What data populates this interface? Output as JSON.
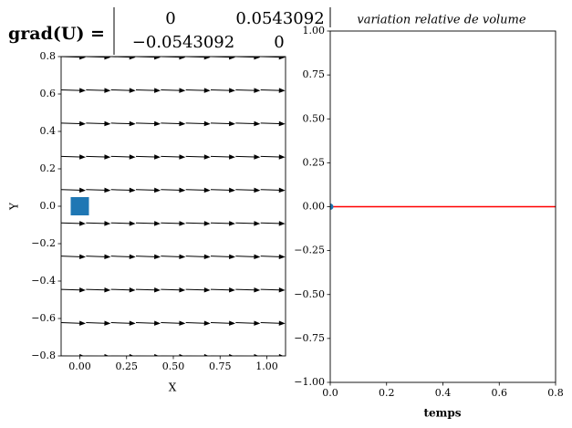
{
  "chart_data": [
    {
      "type": "quiver",
      "title": "grad(U) =",
      "matrix": [
        [
          0,
          0.0543092
        ],
        [
          {
            "value": -0.0543092,
            "label": "−0.0543092"
          },
          0
        ]
      ],
      "x_label": "X",
      "y_label": "Y",
      "xlim": [
        -0.1,
        1.1
      ],
      "ylim": [
        -0.8,
        0.8
      ],
      "xticks": [
        {
          "value": 0,
          "label": "0.00"
        },
        {
          "value": 0.25,
          "label": "0.25"
        },
        {
          "value": 0.5,
          "label": "0.50"
        },
        {
          "value": 0.75,
          "label": "0.75"
        },
        {
          "value": 1,
          "label": "1.00"
        }
      ],
      "yticks": [
        {
          "value": -0.8,
          "label": "−0.8"
        },
        {
          "value": -0.6,
          "label": "−0.6"
        },
        {
          "value": -0.4,
          "label": "−0.4"
        },
        {
          "value": -0.2,
          "label": "−0.2"
        },
        {
          "value": 0,
          "label": "0.0"
        },
        {
          "value": 0.2,
          "label": "0.2"
        },
        {
          "value": 0.4,
          "label": "0.4"
        },
        {
          "value": 0.6,
          "label": "0.6"
        },
        {
          "value": 0.8,
          "label": "0.8"
        }
      ],
      "quiver": {
        "x": [
          -0.1,
          0.0333,
          0.1667,
          0.3,
          0.4333,
          0.5667,
          0.7,
          0.8333,
          0.9667,
          1.1
        ],
        "y": [
          -0.8,
          -0.6222,
          -0.4444,
          -0.2667,
          -0.0889,
          0.0889,
          0.2667,
          0.4444,
          0.6222,
          0.8
        ],
        "u": 0.125,
        "v": -0.004,
        "color": "#000000"
      },
      "marker": {
        "x": 0,
        "y": 0,
        "color": "#1f77b4"
      }
    },
    {
      "type": "line",
      "title": "variation relative de volume",
      "x_label": "temps",
      "xlim": [
        0,
        0.8
      ],
      "ylim": [
        -1,
        1
      ],
      "xticks": [
        {
          "value": 0,
          "label": "0.0"
        },
        {
          "value": 0.2,
          "label": "0.2"
        },
        {
          "value": 0.4,
          "label": "0.4"
        },
        {
          "value": 0.6,
          "label": "0.6"
        },
        {
          "value": 0.8,
          "label": "0.8"
        }
      ],
      "yticks": [
        {
          "value": -1,
          "label": "−1.00"
        },
        {
          "value": -0.75,
          "label": "−0.75"
        },
        {
          "value": -0.5,
          "label": "−0.50"
        },
        {
          "value": -0.25,
          "label": "−0.25"
        },
        {
          "value": 0,
          "label": "0.00"
        },
        {
          "value": 0.25,
          "label": "0.25"
        },
        {
          "value": 0.5,
          "label": "0.50"
        },
        {
          "value": 0.75,
          "label": "0.75"
        },
        {
          "value": 1,
          "label": "1.00"
        }
      ],
      "series": [
        {
          "color": "#ff0000",
          "x": [
            0,
            0.8
          ],
          "values": [
            0,
            0
          ]
        }
      ],
      "points": {
        "x": [
          0
        ],
        "values": [
          0
        ],
        "color": "#1f77b4"
      }
    }
  ]
}
